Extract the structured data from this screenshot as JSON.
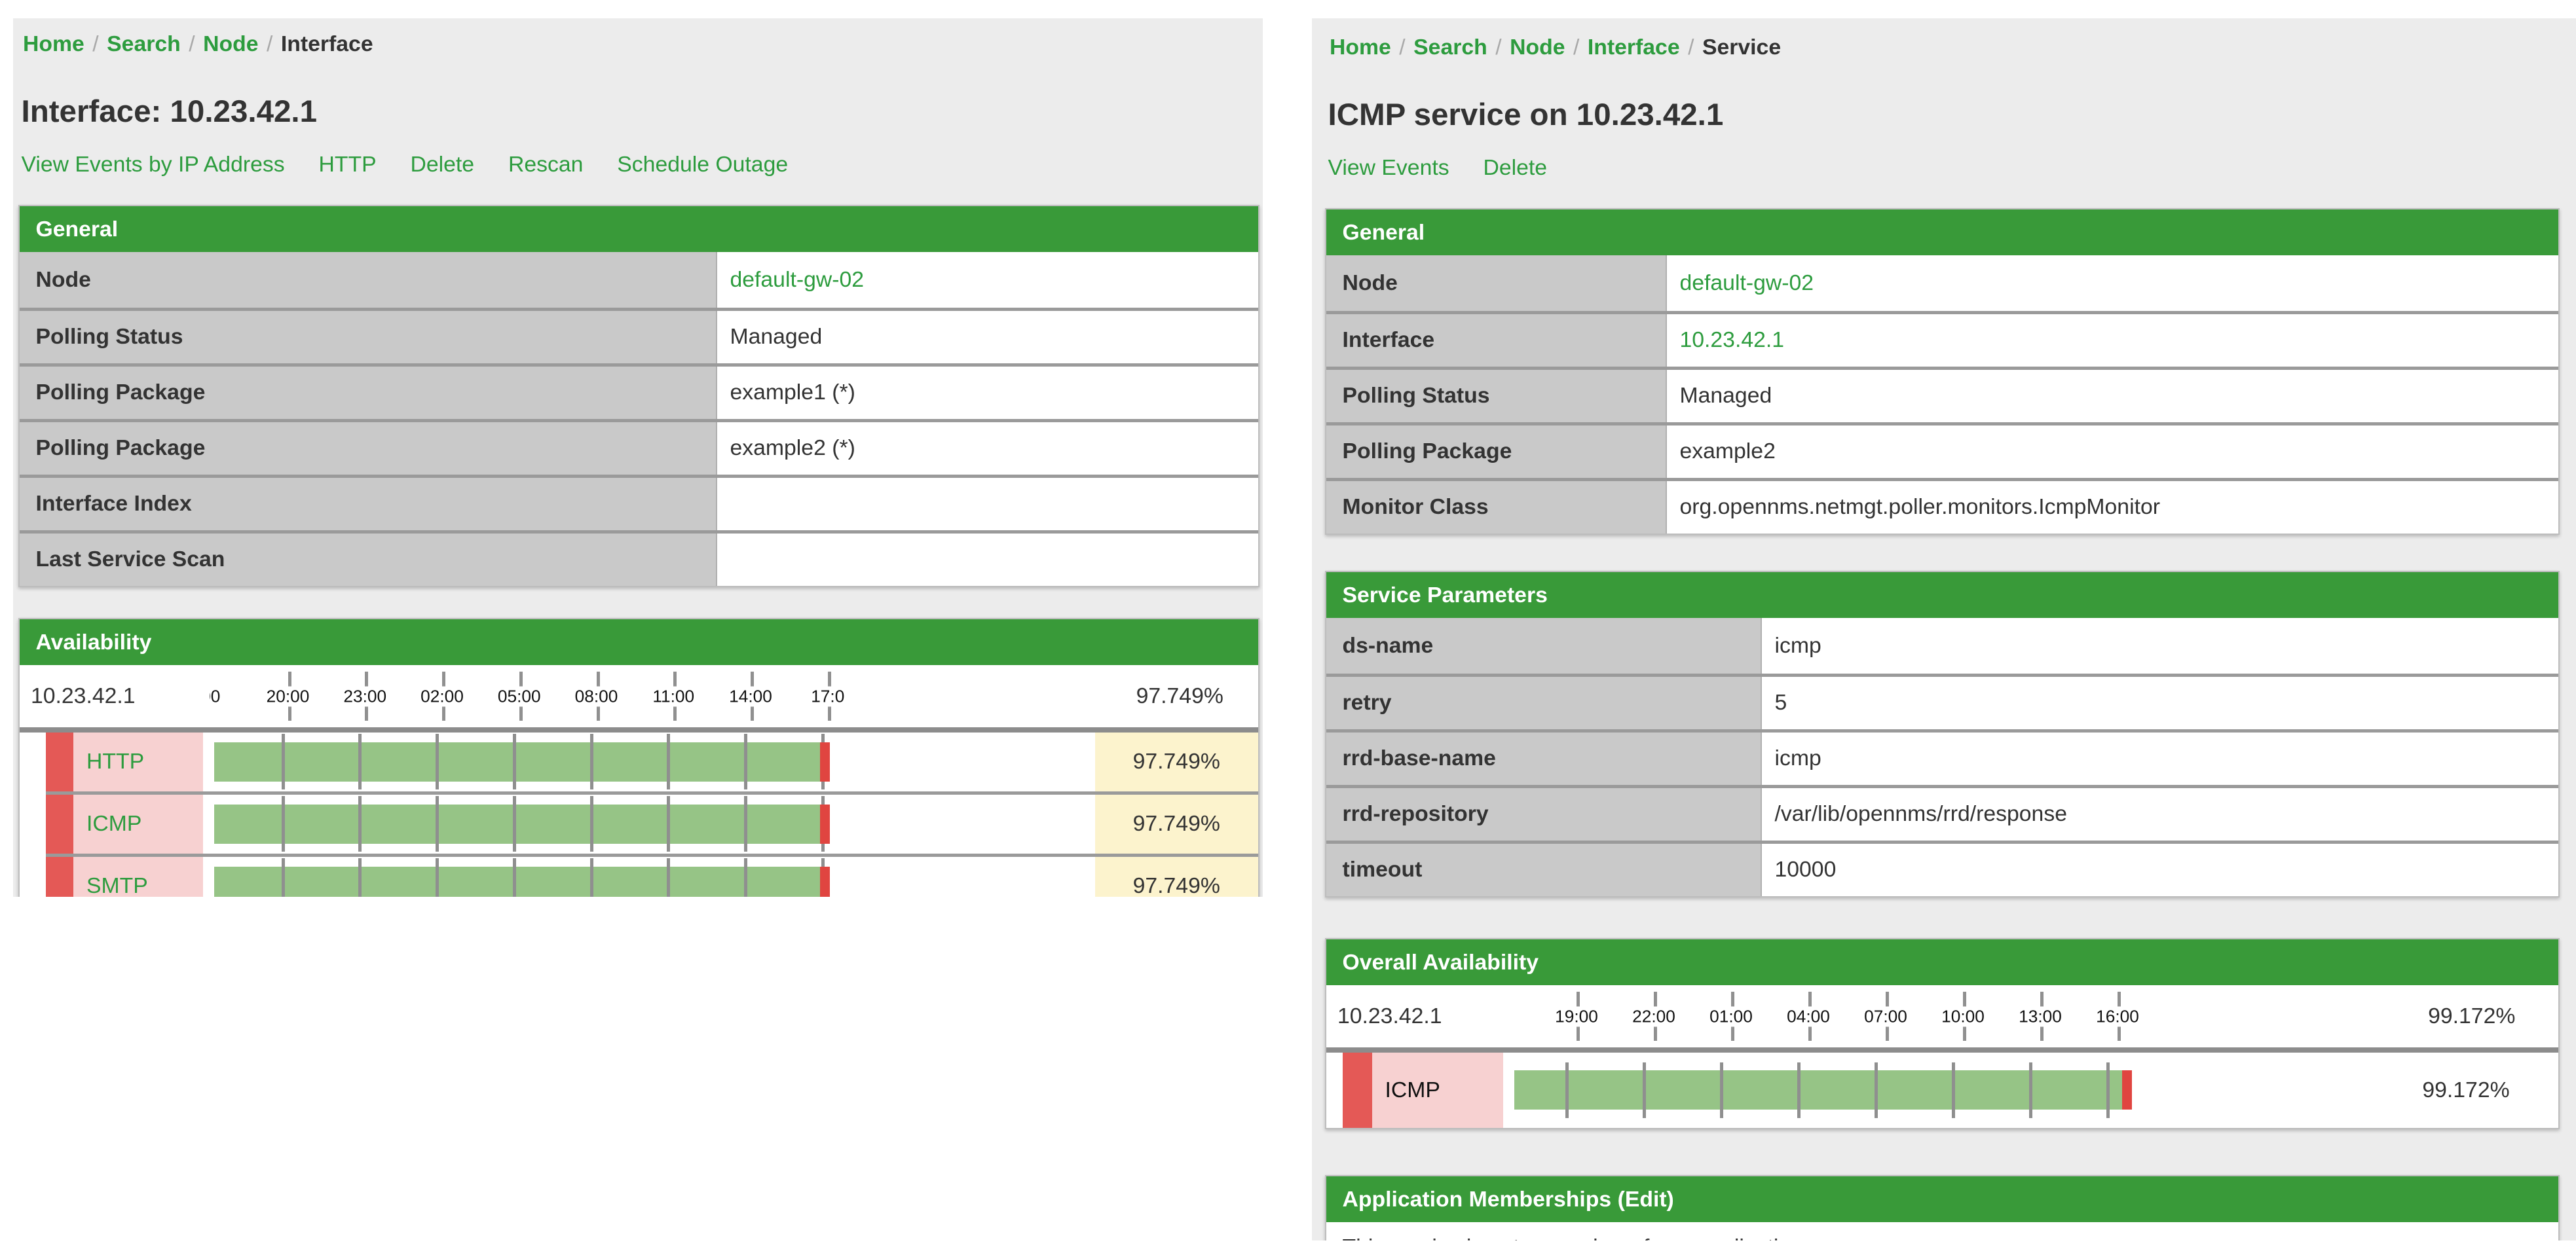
{
  "colors": {
    "header_green": "#399a39",
    "link_green": "#2d9c3e",
    "label_gray": "#c9c9c9",
    "bar_green": "#96c486",
    "bar_outage_red": "#e04540",
    "status_strip_red": "#e45956",
    "service_pink": "#f7d1d1",
    "value_yellow": "#fcf3cd",
    "page_background": "#ececec"
  },
  "breadcrumb_separator": "/",
  "left": {
    "breadcrumb": {
      "links": [
        "Home",
        "Search",
        "Node"
      ],
      "current": "Interface"
    },
    "title": "Interface: 10.23.42.1",
    "actions": [
      "View Events by IP Address",
      "HTTP",
      "Delete",
      "Rescan",
      "Schedule Outage"
    ],
    "general": {
      "title": "General",
      "rows": [
        {
          "label": "Node",
          "value": "default-gw-02"
        },
        {
          "label": "Polling Status",
          "value": "Managed"
        },
        {
          "label": "Polling Package",
          "value": "example1 (*)"
        },
        {
          "label": "Polling Package",
          "value": "example2 (*)"
        },
        {
          "label": "Interface Index",
          "value": ""
        },
        {
          "label": "Last Service Scan",
          "value": ""
        }
      ]
    },
    "availability": {
      "title": "Availability",
      "ip": "10.23.42.1",
      "overall": "97.749%",
      "axis_labels": [
        "00",
        "20:00",
        "23:00",
        "02:00",
        "05:00",
        "08:00",
        "11:00",
        "14:00",
        "17:0"
      ],
      "rows": [
        {
          "service": "HTTP",
          "value": "97.749%"
        },
        {
          "service": "ICMP",
          "value": "97.749%"
        },
        {
          "service": "SMTP",
          "value": "97.749%"
        }
      ]
    }
  },
  "right": {
    "breadcrumb": {
      "links": [
        "Home",
        "Search",
        "Node",
        "Interface"
      ],
      "current": "Service"
    },
    "title": "ICMP service on 10.23.42.1",
    "actions": [
      "View Events",
      "Delete"
    ],
    "general": {
      "title": "General",
      "rows": [
        {
          "label": "Node",
          "value": "default-gw-02"
        },
        {
          "label": "Interface",
          "value": "10.23.42.1"
        },
        {
          "label": "Polling Status",
          "value": "Managed"
        },
        {
          "label": "Polling Package",
          "value": "example2"
        },
        {
          "label": "Monitor Class",
          "value": "org.opennms.netmgt.poller.monitors.IcmpMonitor"
        }
      ]
    },
    "service_parameters": {
      "title": "Service Parameters",
      "rows": [
        {
          "label": "ds-name",
          "value": "icmp"
        },
        {
          "label": "retry",
          "value": "5"
        },
        {
          "label": "rrd-base-name",
          "value": "icmp"
        },
        {
          "label": "rrd-repository",
          "value": "/var/lib/opennms/rrd/response"
        },
        {
          "label": "timeout",
          "value": "10000"
        }
      ]
    },
    "overall_availability": {
      "title": "Overall Availability",
      "ip": "10.23.42.1",
      "overall": "99.172%",
      "axis_labels": [
        "19:00",
        "22:00",
        "01:00",
        "04:00",
        "07:00",
        "10:00",
        "13:00",
        "16:00"
      ],
      "rows": [
        {
          "service": "ICMP",
          "value": "99.172%"
        }
      ]
    },
    "applications": {
      "title": "Application Memberships",
      "edit_label": "(Edit)",
      "note": "This service is not a member of any applications"
    }
  }
}
